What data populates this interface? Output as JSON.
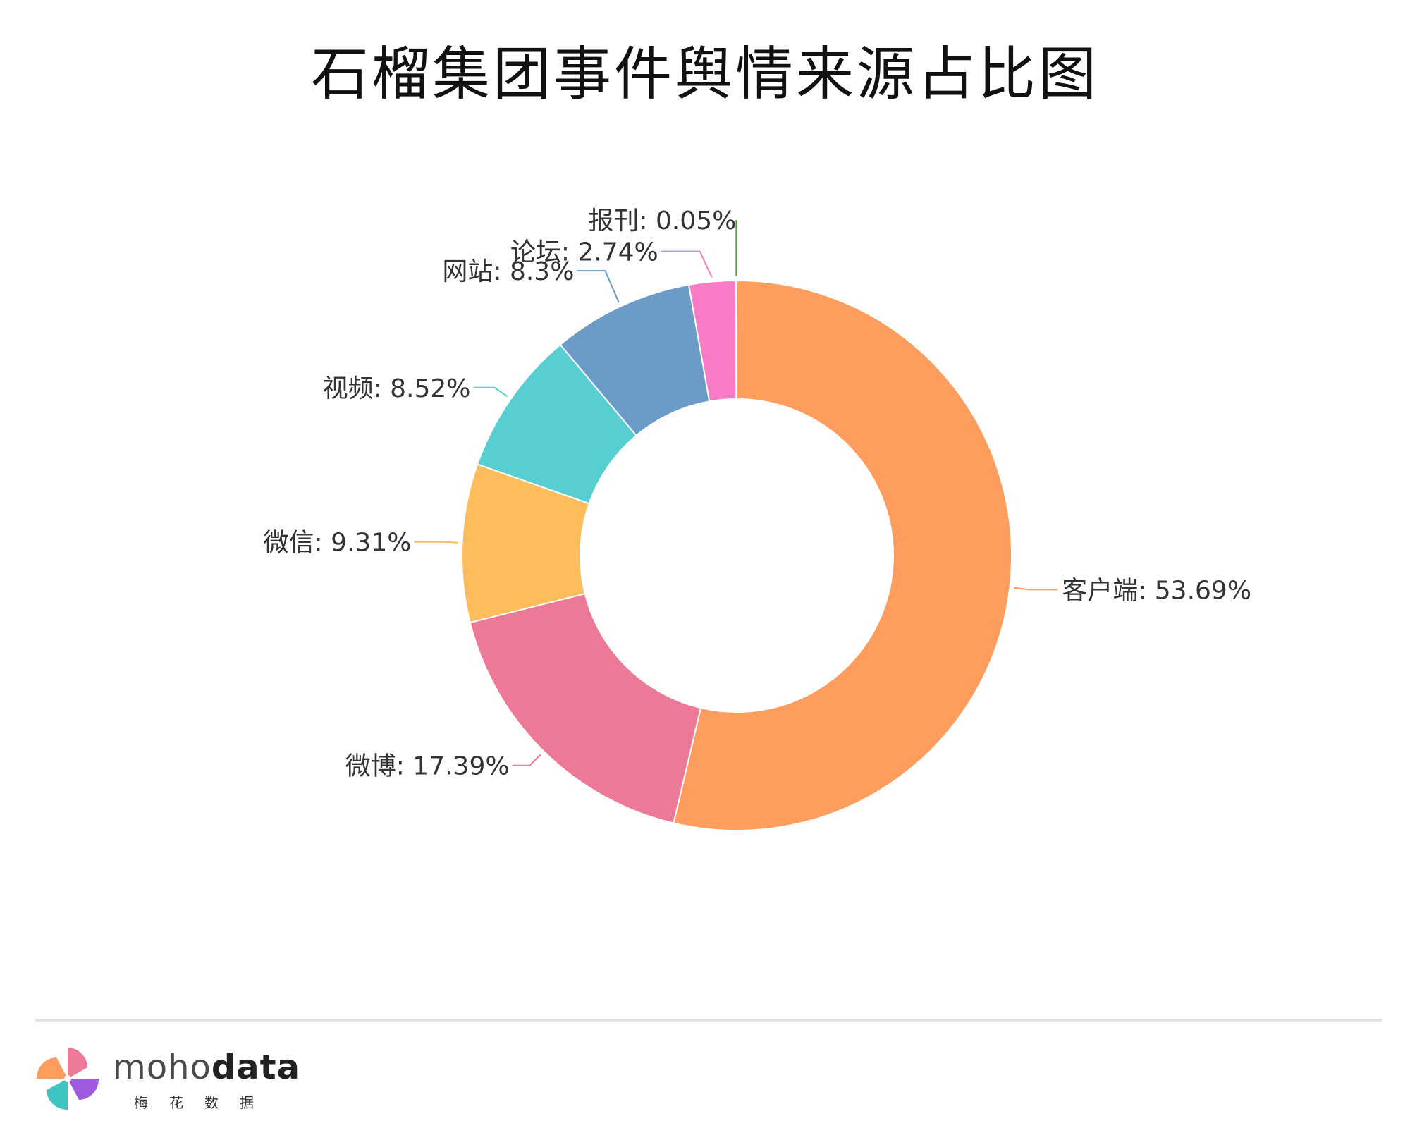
{
  "title": "石榴集团事件舆情来源占比图",
  "chart_data": {
    "type": "pie",
    "donut": true,
    "slices": [
      {
        "name": "客户端",
        "value": 53.69,
        "label": "客户端: 53.69%",
        "color": "#fe9d5e"
      },
      {
        "name": "微博",
        "value": 17.39,
        "label": "微博: 17.39%",
        "color": "#ec7a96"
      },
      {
        "name": "微信",
        "value": 9.31,
        "label": "微信: 9.31%",
        "color": "#fdbd5d"
      },
      {
        "name": "视频",
        "value": 8.52,
        "label": "视频: 8.52%",
        "color": "#56ced2"
      },
      {
        "name": "网站",
        "value": 8.3,
        "label": "网站: 8.3%",
        "color": "#6c9bc7"
      },
      {
        "name": "论坛",
        "value": 2.74,
        "label": "论坛: 2.74%",
        "color": "#f97bc6"
      },
      {
        "name": "报刊",
        "value": 0.05,
        "label": "报刊: 0.05%",
        "color": "#5b9a3a"
      }
    ]
  },
  "footer": {
    "brand_light": "moho",
    "brand_bold": "data",
    "brand_cn": "梅花数据"
  }
}
